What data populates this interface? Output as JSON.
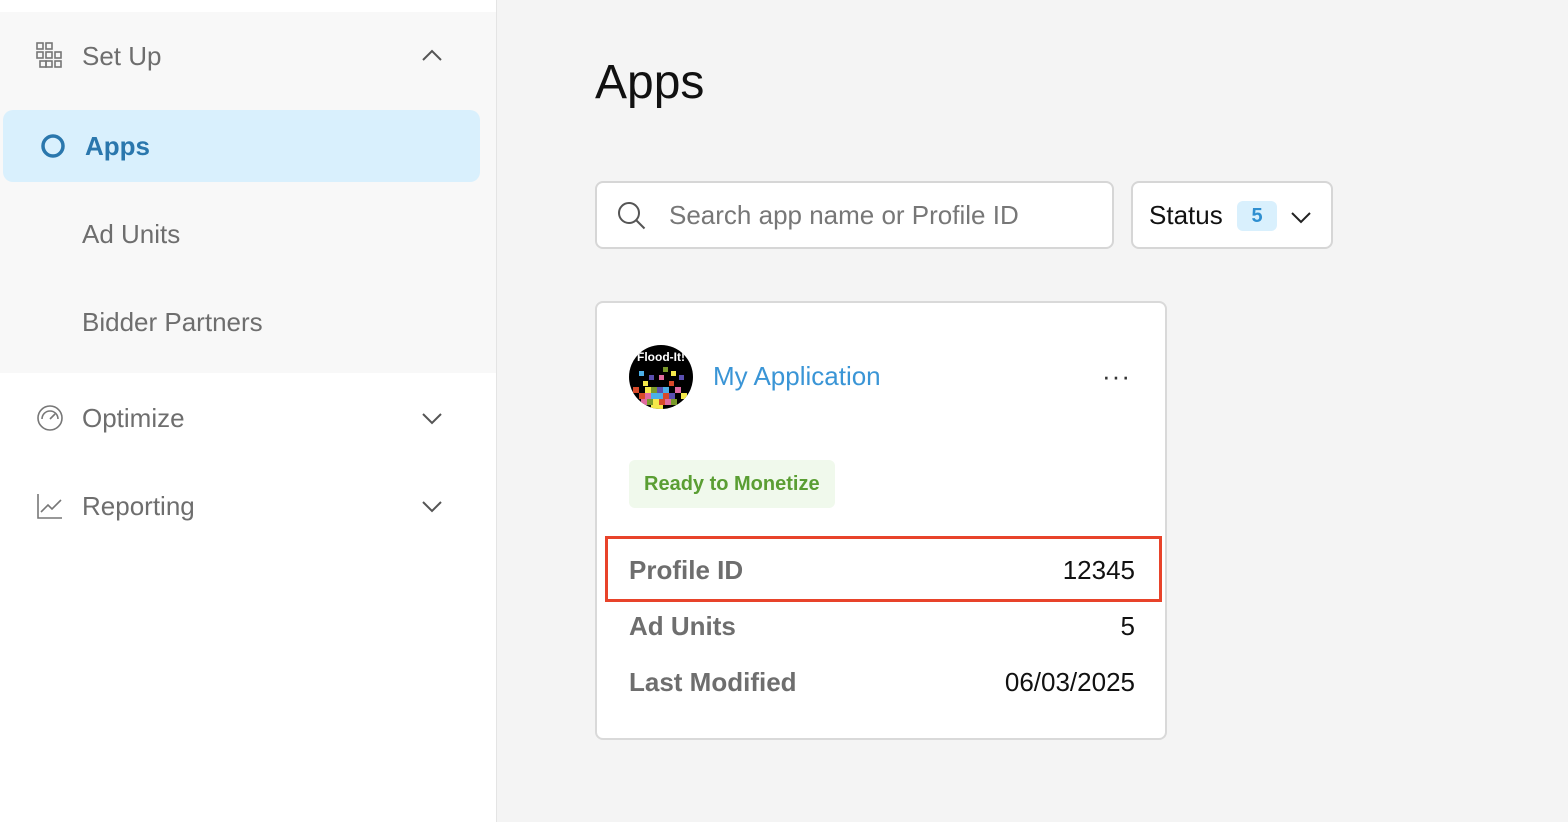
{
  "sidebar": {
    "setup": {
      "label": "Set Up",
      "icon": "grid-icon",
      "expanded": true
    },
    "items": [
      {
        "label": "Apps",
        "active": true
      },
      {
        "label": "Ad Units"
      },
      {
        "label": "Bidder Partners"
      }
    ],
    "optimize": {
      "label": "Optimize",
      "icon": "gauge-icon"
    },
    "reporting": {
      "label": "Reporting",
      "icon": "chart-line-icon"
    }
  },
  "main": {
    "title": "Apps",
    "search": {
      "placeholder": "Search app name or Profile ID",
      "value": ""
    },
    "status_filter": {
      "label": "Status",
      "count": "5"
    },
    "card": {
      "name": "My Application",
      "logo_text": "Flood-It!",
      "more": "···",
      "status": "Ready to Monetize",
      "fields": [
        {
          "label": "Profile ID",
          "value": "12345"
        },
        {
          "label": "Ad Units",
          "value": "5"
        },
        {
          "label": "Last Modified",
          "value": "06/03/2025"
        }
      ]
    }
  },
  "colors": {
    "accent": "#2a77ad",
    "link": "#3a95d6",
    "ready": "#5a9e33",
    "highlight": "#e8432a"
  }
}
